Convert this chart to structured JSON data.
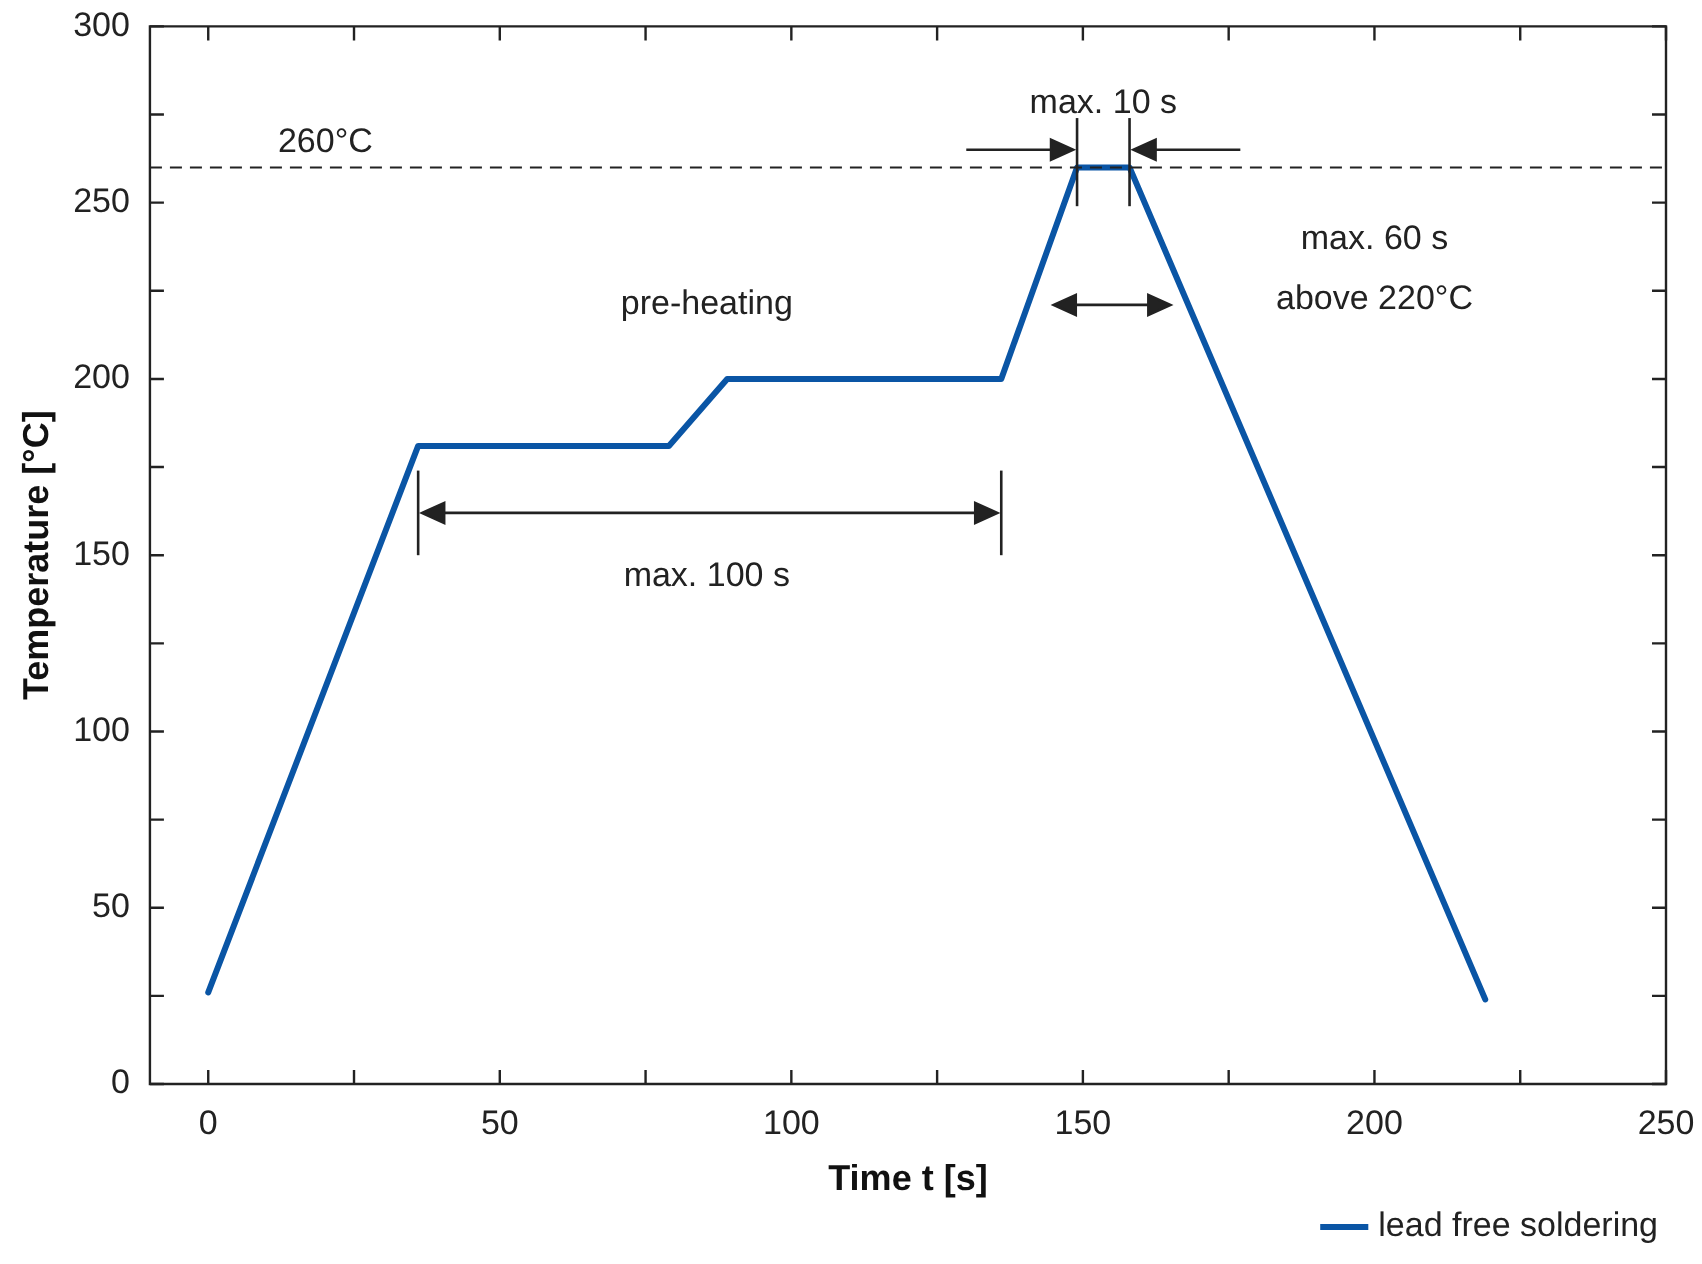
{
  "chart_data": {
    "type": "line",
    "xlabel": "Time t [s]",
    "ylabel": "Temperature [°C]",
    "xlim": [
      -10,
      250
    ],
    "xticks": [
      0,
      {
        "value": 25,
        "label": null
      },
      50,
      {
        "value": 75,
        "label": null
      },
      100,
      {
        "value": 125,
        "label": null
      },
      150,
      {
        "value": 175,
        "label": null
      },
      200,
      {
        "value": 225,
        "label": null
      },
      250
    ],
    "ylim": [
      0,
      300
    ],
    "yticks": [
      0,
      {
        "value": 25,
        "label": null
      },
      50,
      {
        "value": 75,
        "label": null
      },
      100,
      {
        "value": 125,
        "label": null
      },
      150,
      {
        "value": 175,
        "label": null
      },
      200,
      {
        "value": 225,
        "label": null
      },
      250,
      {
        "value": 275,
        "label": null
      },
      300
    ],
    "series": [
      {
        "name": "lead free soldering",
        "color": "#0a55a5",
        "x": [
          0,
          36,
          79,
          89,
          136,
          149,
          158,
          219
        ],
        "values": [
          26,
          181,
          181,
          200,
          200,
          260,
          260,
          24
        ]
      }
    ],
    "ref_lines": [
      {
        "axis": "y",
        "value": 260,
        "label": "260°C",
        "color": "#222222",
        "line_style": "dashed"
      }
    ],
    "annotations": [
      "max. 10 s",
      "pre-heating",
      "max. 100 s",
      "max. 60 s\nabove 220°C"
    ],
    "grid": false,
    "legend": "bottom right",
    "marker": "none",
    "line_style": "solid"
  }
}
